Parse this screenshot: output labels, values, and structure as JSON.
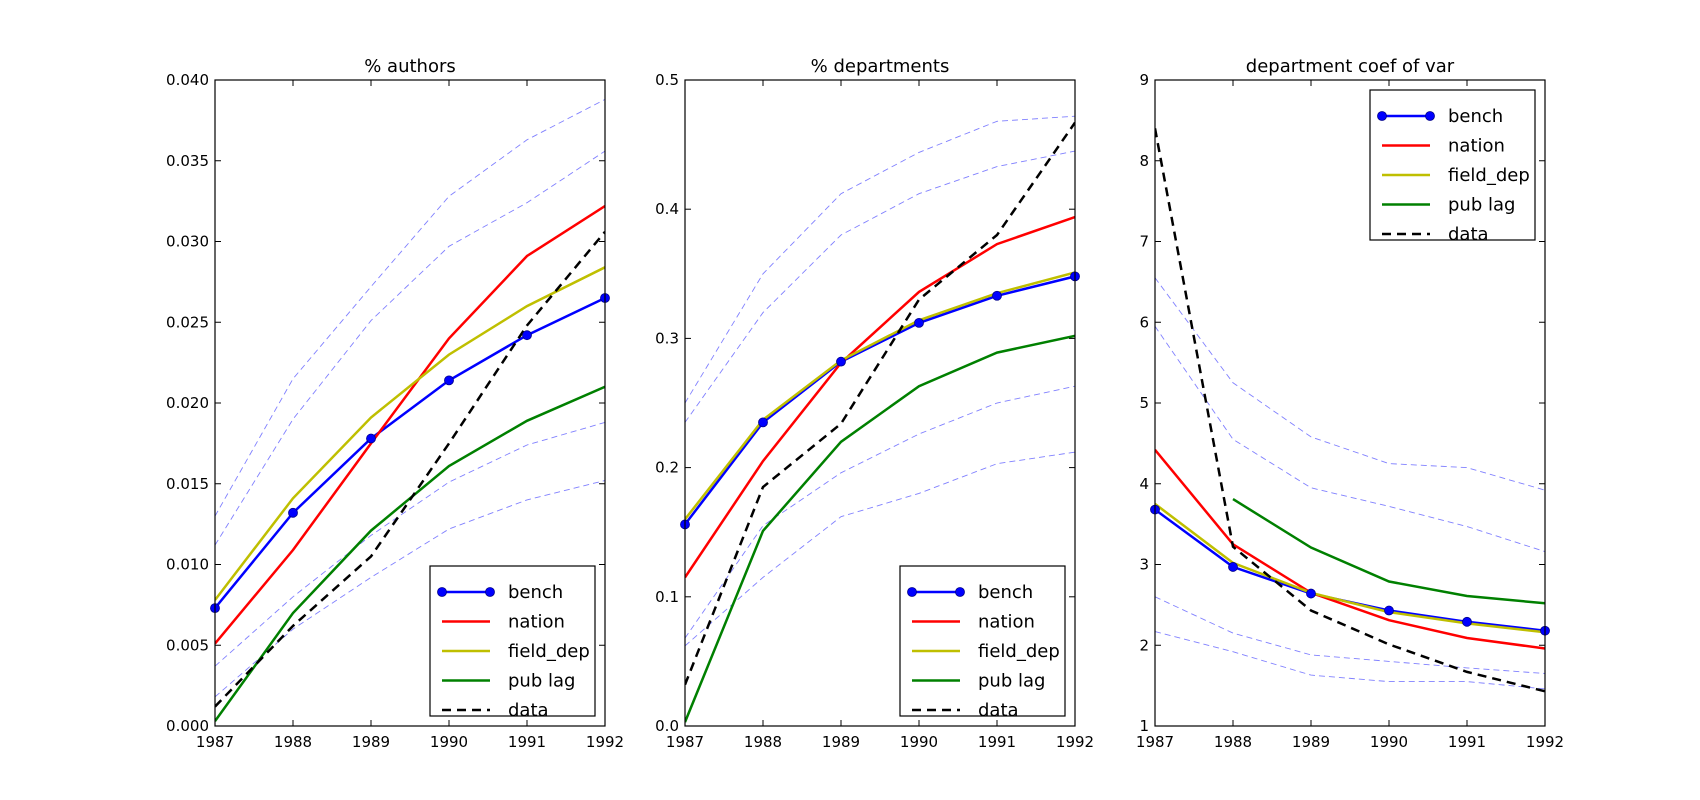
{
  "chart_data": [
    {
      "type": "line",
      "title": "% authors",
      "x": [
        1987,
        1988,
        1989,
        1990,
        1991,
        1992
      ],
      "xlim": [
        1987,
        1992
      ],
      "ylim": [
        0,
        0.04
      ],
      "xticks": [
        "1987",
        "1988",
        "1989",
        "1990",
        "1991",
        "1992"
      ],
      "yticks": [
        "0.000",
        "0.005",
        "0.010",
        "0.015",
        "0.020",
        "0.025",
        "0.030",
        "0.035",
        "0.040"
      ],
      "legend_position": "lower-right",
      "series": [
        {
          "name": "bench",
          "values": [
            0.0073,
            0.0132,
            0.0178,
            0.0214,
            0.0242,
            0.0265
          ]
        },
        {
          "name": "nation",
          "values": [
            0.0051,
            0.0109,
            0.0175,
            0.024,
            0.0291,
            0.0322
          ]
        },
        {
          "name": "field_dep",
          "values": [
            0.0078,
            0.0141,
            0.0191,
            0.023,
            0.026,
            0.0284
          ]
        },
        {
          "name": "pub lag",
          "values": [
            0.0003,
            0.007,
            0.0121,
            0.0161,
            0.0189,
            0.021
          ]
        },
        {
          "name": "data",
          "values": [
            0.0012,
            0.0062,
            0.0105,
            0.0175,
            0.0248,
            0.0306
          ]
        }
      ],
      "bands": [
        [
          0.013,
          0.0215,
          0.0272,
          0.0328,
          0.0363,
          0.0388
        ],
        [
          0.0112,
          0.019,
          0.0251,
          0.0297,
          0.0324,
          0.0356
        ],
        [
          0.0037,
          0.008,
          0.0118,
          0.0151,
          0.0174,
          0.0188
        ],
        [
          0.0018,
          0.006,
          0.0092,
          0.0122,
          0.014,
          0.0152
        ]
      ]
    },
    {
      "type": "line",
      "title": "% departments",
      "x": [
        1987,
        1988,
        1989,
        1990,
        1991,
        1992
      ],
      "xlim": [
        1987,
        1992
      ],
      "ylim": [
        0,
        0.5
      ],
      "xticks": [
        "1987",
        "1988",
        "1989",
        "1990",
        "1991",
        "1992"
      ],
      "yticks": [
        "0.0",
        "0.1",
        "0.2",
        "0.3",
        "0.4",
        "0.5"
      ],
      "legend_position": "lower-right",
      "series": [
        {
          "name": "bench",
          "values": [
            0.156,
            0.235,
            0.282,
            0.312,
            0.333,
            0.348
          ]
        },
        {
          "name": "nation",
          "values": [
            0.115,
            0.205,
            0.281,
            0.336,
            0.373,
            0.394
          ]
        },
        {
          "name": "field_dep",
          "values": [
            0.16,
            0.237,
            0.283,
            0.314,
            0.335,
            0.351
          ]
        },
        {
          "name": "pub lag",
          "values": [
            0.003,
            0.151,
            0.22,
            0.263,
            0.289,
            0.302
          ]
        },
        {
          "name": "data",
          "values": [
            0.032,
            0.185,
            0.234,
            0.33,
            0.38,
            0.467
          ]
        }
      ],
      "bands": [
        [
          0.25,
          0.35,
          0.412,
          0.444,
          0.468,
          0.472
        ],
        [
          0.235,
          0.32,
          0.38,
          0.412,
          0.433,
          0.445
        ],
        [
          0.068,
          0.155,
          0.196,
          0.226,
          0.25,
          0.263
        ],
        [
          0.062,
          0.115,
          0.162,
          0.18,
          0.203,
          0.212
        ]
      ]
    },
    {
      "type": "line",
      "title": "department coef of var",
      "x": [
        1987,
        1988,
        1989,
        1990,
        1991,
        1992
      ],
      "xlim": [
        1987,
        1992
      ],
      "ylim": [
        1,
        9
      ],
      "xticks": [
        "1987",
        "1988",
        "1989",
        "1990",
        "1991",
        "1992"
      ],
      "yticks": [
        "1",
        "2",
        "3",
        "4",
        "5",
        "6",
        "7",
        "8",
        "9"
      ],
      "legend_position": "upper-right",
      "series": [
        {
          "name": "bench",
          "values": [
            3.68,
            2.97,
            2.64,
            2.43,
            2.29,
            2.18
          ]
        },
        {
          "name": "nation",
          "values": [
            4.42,
            3.25,
            2.65,
            2.31,
            2.09,
            1.96
          ]
        },
        {
          "name": "field_dep",
          "values": [
            3.75,
            3.02,
            2.65,
            2.41,
            2.27,
            2.16
          ]
        },
        {
          "name": "pub lag",
          "values": [
            null,
            3.81,
            3.21,
            2.79,
            2.61,
            2.52
          ]
        },
        {
          "name": "data",
          "values": [
            8.4,
            3.22,
            2.43,
            2.01,
            1.67,
            1.43
          ]
        }
      ],
      "bands": [
        [
          6.55,
          5.25,
          4.58,
          4.25,
          4.2,
          3.92
        ],
        [
          5.95,
          4.55,
          3.95,
          3.72,
          3.47,
          3.16
        ],
        [
          2.6,
          2.15,
          1.88,
          1.8,
          1.72,
          1.65
        ],
        [
          2.17,
          1.92,
          1.63,
          1.55,
          1.55,
          1.46
        ]
      ]
    }
  ],
  "styles": {
    "bench": "#0000ff",
    "nation": "#ff0000",
    "field_dep": "#bfbf00",
    "pub lag": "#008000",
    "data": "#000000",
    "band": "#8080ff"
  }
}
